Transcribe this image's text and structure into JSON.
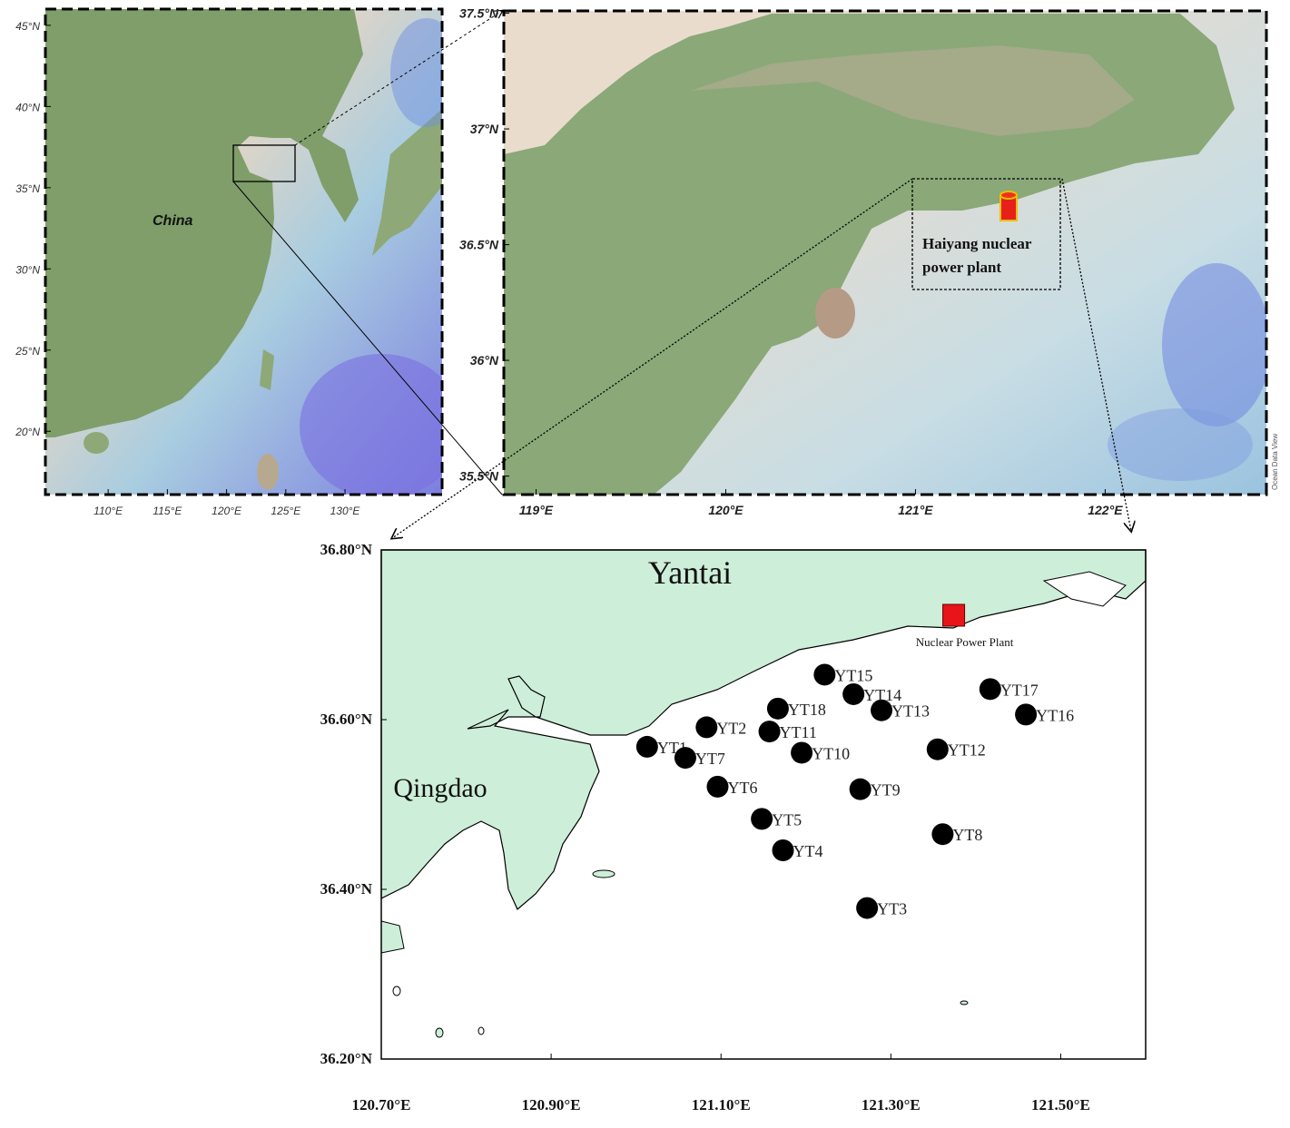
{
  "overview_map": {
    "label": "China",
    "xlim": [
      104.7,
      138.2
    ],
    "ylim": [
      16.1,
      46.0
    ],
    "xticks": [
      {
        "value": 110,
        "label": "110°E"
      },
      {
        "value": 115,
        "label": "115°E"
      },
      {
        "value": 120,
        "label": "120°E"
      },
      {
        "value": 125,
        "label": "125°E"
      },
      {
        "value": 130,
        "label": "130°E"
      }
    ],
    "yticks": [
      {
        "value": 20,
        "label": "20°N"
      },
      {
        "value": 25,
        "label": "25°N"
      },
      {
        "value": 30,
        "label": "30°N"
      },
      {
        "value": 35,
        "label": "35°N"
      },
      {
        "value": 40,
        "label": "40°N"
      },
      {
        "value": 45,
        "label": "45°N"
      }
    ]
  },
  "regional_map": {
    "label_lines": [
      "Haiyang nuclear",
      "power plant"
    ],
    "credit": "Ocean Data View",
    "xlim": [
      118.83,
      122.85
    ],
    "ylim": [
      35.42,
      37.51
    ],
    "xticks": [
      {
        "value": 119,
        "label": "119°E"
      },
      {
        "value": 120,
        "label": "120°E"
      },
      {
        "value": 121,
        "label": "121°E"
      },
      {
        "value": 122,
        "label": "122°E"
      }
    ],
    "yticks": [
      {
        "value": 35.5,
        "label": "35.5°N"
      },
      {
        "value": 36,
        "label": "36°N"
      },
      {
        "value": 36.5,
        "label": "36.5°N"
      },
      {
        "value": 37,
        "label": "37°N"
      },
      {
        "value": 37.5,
        "label": "37.5°N"
      }
    ]
  },
  "station_map": {
    "cities": [
      "Yantai",
      "Qingdao"
    ],
    "xlim": [
      120.7,
      121.6
    ],
    "ylim": [
      36.2,
      36.8
    ],
    "xticks": [
      {
        "value": 120.7,
        "label": "120.70°E"
      },
      {
        "value": 120.9,
        "label": "120.90°E"
      },
      {
        "value": 121.1,
        "label": "121.10°E"
      },
      {
        "value": 121.3,
        "label": "121.30°E"
      },
      {
        "value": 121.5,
        "label": "121.50°E"
      }
    ],
    "yticks": [
      {
        "value": 36.2,
        "label": "36.20°N"
      },
      {
        "value": 36.4,
        "label": "36.40°N"
      },
      {
        "value": 36.6,
        "label": "36.60°N"
      },
      {
        "value": 36.8,
        "label": "36.80°N"
      }
    ],
    "plant": {
      "name": "Nuclear Power Plant",
      "x": 121.374,
      "y": 36.723,
      "color": "#e8141a"
    },
    "station_color": "#000000",
    "stations": [
      {
        "name": "YT1",
        "x": 121.013,
        "y": 36.568
      },
      {
        "name": "YT2",
        "x": 121.083,
        "y": 36.591
      },
      {
        "name": "YT3",
        "x": 121.272,
        "y": 36.378
      },
      {
        "name": "YT4",
        "x": 121.173,
        "y": 36.446
      },
      {
        "name": "YT5",
        "x": 121.148,
        "y": 36.483
      },
      {
        "name": "YT6",
        "x": 121.096,
        "y": 36.521
      },
      {
        "name": "YT7",
        "x": 121.058,
        "y": 36.555
      },
      {
        "name": "YT8",
        "x": 121.361,
        "y": 36.465
      },
      {
        "name": "YT9",
        "x": 121.264,
        "y": 36.518
      },
      {
        "name": "YT10",
        "x": 121.195,
        "y": 36.561
      },
      {
        "name": "YT11",
        "x": 121.157,
        "y": 36.586
      },
      {
        "name": "YT12",
        "x": 121.355,
        "y": 36.565
      },
      {
        "name": "YT13",
        "x": 121.289,
        "y": 36.611
      },
      {
        "name": "YT14",
        "x": 121.256,
        "y": 36.63
      },
      {
        "name": "YT15",
        "x": 121.222,
        "y": 36.653
      },
      {
        "name": "YT16",
        "x": 121.459,
        "y": 36.606
      },
      {
        "name": "YT17",
        "x": 121.417,
        "y": 36.636
      },
      {
        "name": "YT18",
        "x": 121.167,
        "y": 36.613
      }
    ]
  }
}
